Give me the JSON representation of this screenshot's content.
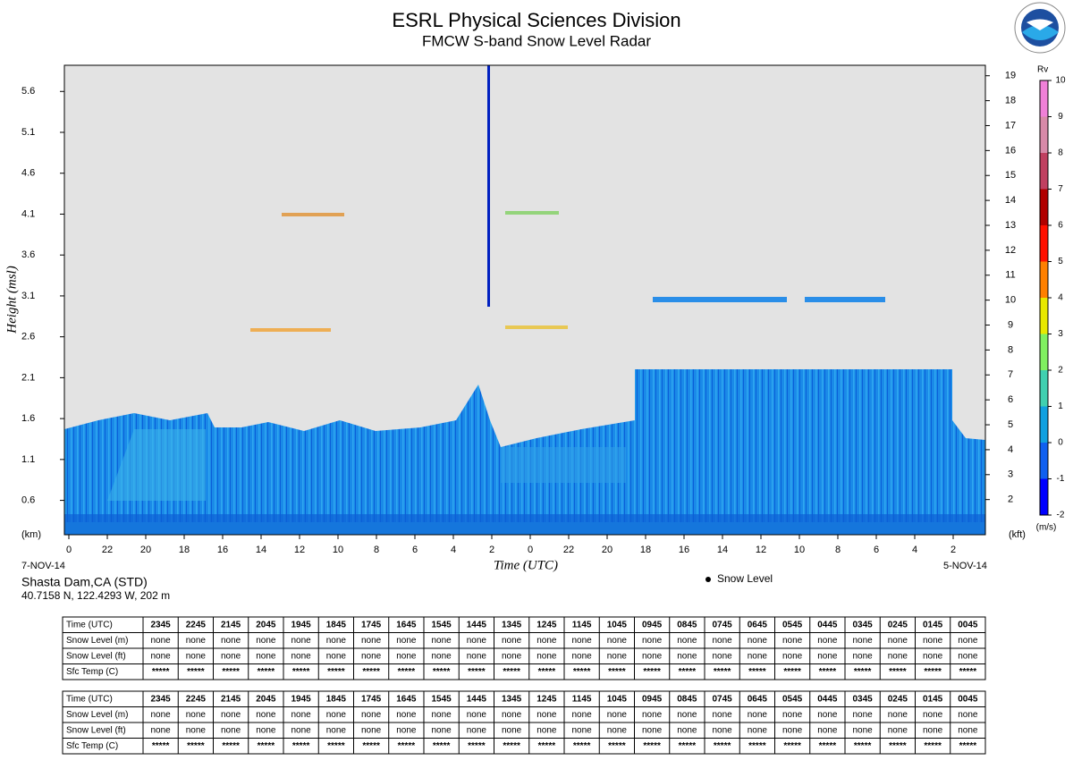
{
  "header": {
    "title": "ESRL Physical Sciences Division",
    "subtitle": "FMCW S-band Snow Level Radar"
  },
  "chart_data": {
    "type": "heatmap",
    "ylabel": "Height (msl)",
    "xlabel": "Time (UTC)",
    "ylim": [
      0.18,
      5.92
    ],
    "yticks": [
      0.6,
      1.1,
      1.6,
      2.1,
      2.6,
      3.1,
      3.6,
      4.1,
      4.6,
      5.1,
      5.6
    ],
    "yunit": "(km)",
    "y2lim": [
      0.59,
      19.42
    ],
    "y2ticks": [
      2,
      3,
      4,
      5,
      6,
      7,
      8,
      9,
      10,
      11,
      12,
      13,
      14,
      15,
      16,
      17,
      18,
      19
    ],
    "y2unit": "(kft)",
    "categories": [
      "0",
      "22",
      "20",
      "18",
      "16",
      "14",
      "12",
      "10",
      "8",
      "6",
      "4",
      "2",
      "0",
      "22",
      "20",
      "18",
      "16",
      "14",
      "12",
      "10",
      "8",
      "6",
      "4",
      "2"
    ],
    "start_date": "7-NOV-14",
    "end_date": "5-NOV-14",
    "colorbar": {
      "title": "Rv",
      "unit": "(m/s)",
      "lim": [
        -2,
        10
      ],
      "ticks": [
        -2,
        -1,
        0,
        1,
        2,
        3,
        4,
        5,
        6,
        7,
        8,
        9,
        10
      ],
      "colors": [
        "#0000ff",
        "#1060f0",
        "#10a0e0",
        "#40d0b0",
        "#80f060",
        "#e8e800",
        "#ff8000",
        "#ff1000",
        "#b00000",
        "#c04060",
        "#d88aa8",
        "#f080d8"
      ]
    },
    "legend": [
      "Snow Level"
    ]
  },
  "site": {
    "name": "Shasta Dam,CA (STD)",
    "location": "40.7158 N, 122.4293 W, 202 m"
  },
  "tables": [
    {
      "rows": [
        [
          "Time (UTC)",
          "2345",
          "2245",
          "2145",
          "2045",
          "1945",
          "1845",
          "1745",
          "1645",
          "1545",
          "1445",
          "1345",
          "1245",
          "1145",
          "1045",
          "0945",
          "0845",
          "0745",
          "0645",
          "0545",
          "0445",
          "0345",
          "0245",
          "0145",
          "0045"
        ],
        [
          "Snow Level (m)",
          "none",
          "none",
          "none",
          "none",
          "none",
          "none",
          "none",
          "none",
          "none",
          "none",
          "none",
          "none",
          "none",
          "none",
          "none",
          "none",
          "none",
          "none",
          "none",
          "none",
          "none",
          "none",
          "none",
          "none"
        ],
        [
          "Snow Level (ft)",
          "none",
          "none",
          "none",
          "none",
          "none",
          "none",
          "none",
          "none",
          "none",
          "none",
          "none",
          "none",
          "none",
          "none",
          "none",
          "none",
          "none",
          "none",
          "none",
          "none",
          "none",
          "none",
          "none",
          "none"
        ],
        [
          "Sfc Temp (C)",
          "*****",
          "*****",
          "*****",
          "*****",
          "*****",
          "*****",
          "*****",
          "*****",
          "*****",
          "*****",
          "*****",
          "*****",
          "*****",
          "*****",
          "*****",
          "*****",
          "*****",
          "*****",
          "*****",
          "*****",
          "*****",
          "*****",
          "*****",
          "*****"
        ]
      ]
    },
    {
      "rows": [
        [
          "Time (UTC)",
          "2345",
          "2245",
          "2145",
          "2045",
          "1945",
          "1845",
          "1745",
          "1645",
          "1545",
          "1445",
          "1345",
          "1245",
          "1145",
          "1045",
          "0945",
          "0845",
          "0745",
          "0645",
          "0545",
          "0445",
          "0345",
          "0245",
          "0145",
          "0045"
        ],
        [
          "Snow Level (m)",
          "none",
          "none",
          "none",
          "none",
          "none",
          "none",
          "none",
          "none",
          "none",
          "none",
          "none",
          "none",
          "none",
          "none",
          "none",
          "none",
          "none",
          "none",
          "none",
          "none",
          "none",
          "none",
          "none",
          "none"
        ],
        [
          "Snow Level (ft)",
          "none",
          "none",
          "none",
          "none",
          "none",
          "none",
          "none",
          "none",
          "none",
          "none",
          "none",
          "none",
          "none",
          "none",
          "none",
          "none",
          "none",
          "none",
          "none",
          "none",
          "none",
          "none",
          "none",
          "none"
        ],
        [
          "Sfc Temp (C)",
          "*****",
          "*****",
          "*****",
          "*****",
          "*****",
          "*****",
          "*****",
          "*****",
          "*****",
          "*****",
          "*****",
          "*****",
          "*****",
          "*****",
          "*****",
          "*****",
          "*****",
          "*****",
          "*****",
          "*****",
          "*****",
          "*****",
          "*****",
          "*****"
        ]
      ]
    }
  ]
}
